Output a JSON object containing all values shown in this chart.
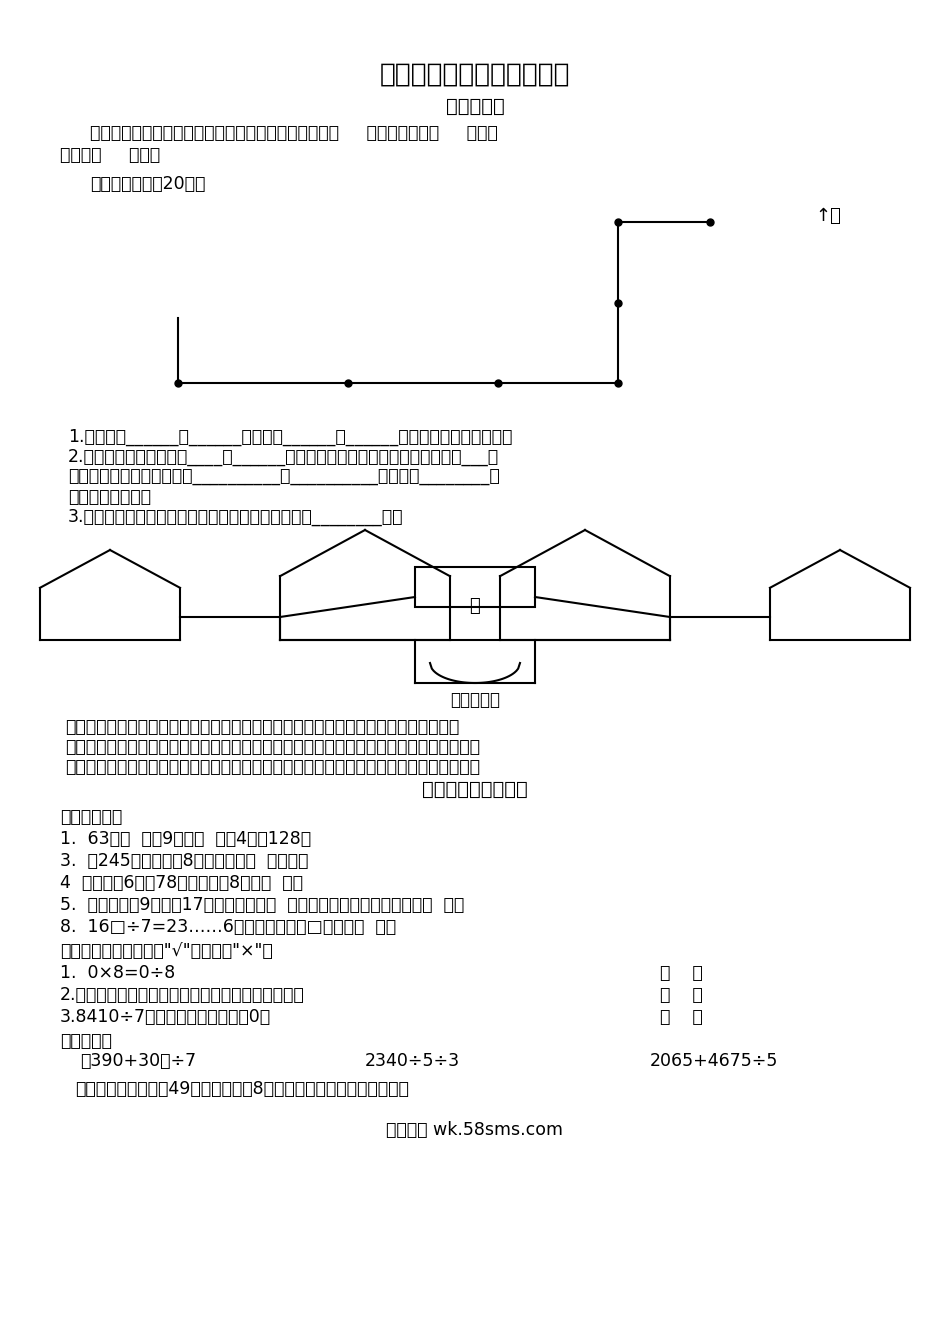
{
  "title": "三年级数学下册巩固与提高",
  "section1_title": "位置与方向",
  "section2_title": "除数是一位数的除法",
  "bg_color": "#ffffff",
  "line1": "早晨同学们面向太阳举行升旗仪式，此时同学们面向（     ）面，背对着（     ）面，",
  "line2": "左侧是（     ）面。",
  "line3": "送信。（每小格20米）",
  "q1_lines": [
    "1.鸽子要向______飞______米，再向______飞______米就把信送给了小松鼠。",
    "2.鸽子从松鼠家出来，向____飞______米就到了兔子家，把信送给兔子后再向___飞",
    "米找到大象，最后再接着向__________飞__________米，又向________飞",
    "米把信交给小猫。",
    "3.从鸽子开始出发，到把信全部送完，在路上共飞了________米。"
  ],
  "zoo_desc": [
    "星期天，我们去动物园游玩，走进动物园大门，正北面有狮子馆和河马馆，熊猫馆在狮",
    "子馆的西北面，飞禽馆在狮子馆的东北面，经过熊猫馆向南走，可到达猿山和大象馆，经过",
    "猿山向东走到达狮子馆和金鱼馆，经过金鱼馆向南走到达骆驼馆，你能填出它们的位置吗？"
  ],
  "fill_title": "请你填一填。",
  "fill_qs": [
    "1.  63是（  ）的9倍，（  ）的4倍是128。",
    "3.  从245里连续减去8，最多能减（  ）几次。",
    "4  一个数的6倍是78，这个数的8倍是（  ）。",
    "5.  一个数除以9，商是17，余数最大是（  ），当余数最大时，被除数是（  ）。",
    "8.  16□÷7=23……6。这道算式中，□里应填（  ）。"
  ],
  "judge_title": "对错我判断。（对的打\"√\"，错的打\"×\"）",
  "judge_qs": [
    "1.  0×8=0÷8",
    "2.一个三位数除以一个一位数，商不一定是三位数。",
    "3.8410÷7，商的末尾一定有一个0。"
  ],
  "calc_title": "脱式计算。",
  "calc_qs": [
    "（390+30）÷7",
    "2340÷5÷3",
    "2065+4675÷5"
  ],
  "word_q": "希望小学三年级共有49人，平均分成8组，每组多少人？还剩下几人？",
  "footer": "五八文库 wk.58sms.com"
}
